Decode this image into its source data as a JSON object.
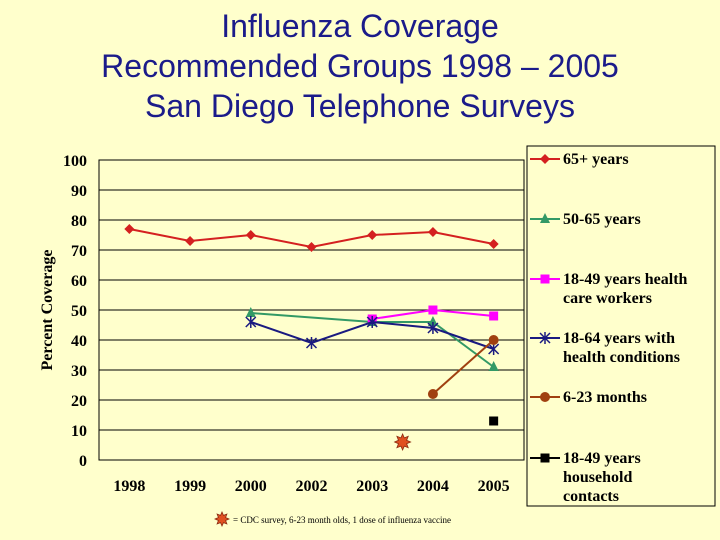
{
  "title_lines": [
    "Influenza Coverage",
    "Recommended Groups 1998 – 2005",
    "San Diego Telephone Surveys"
  ],
  "footnote": "= CDC survey, 6-23 month olds, 1 dose of influenza vaccine",
  "chart_data": {
    "type": "line",
    "categories": [
      "1998",
      "1999",
      "2000",
      "2002",
      "2003",
      "2004",
      "2005"
    ],
    "ylabel": "Percent Coverage",
    "xlabel": "",
    "ylim": [
      0,
      100
    ],
    "yticks": [
      "0",
      "10",
      "20",
      "30",
      "40",
      "50",
      "60",
      "70",
      "80",
      "90",
      "100"
    ],
    "grid": true,
    "legend_position": "right",
    "series": [
      {
        "name": "65+ years",
        "color": "#d42020",
        "marker": "diamond",
        "values": [
          77,
          73,
          75,
          71,
          75,
          76,
          72
        ]
      },
      {
        "name": "50-65 years",
        "color": "#339966",
        "marker": "triangle",
        "values": [
          null,
          null,
          49,
          null,
          46,
          46,
          31
        ]
      },
      {
        "name": "18-49 years health care workers",
        "color": "#ff00ff",
        "marker": "square",
        "values": [
          null,
          null,
          null,
          null,
          47,
          50,
          48
        ]
      },
      {
        "name": "18-64 years with health conditions",
        "color": "#1a1a80",
        "marker": "asterisk",
        "values": [
          null,
          null,
          46,
          39,
          46,
          44,
          37
        ]
      },
      {
        "name": "6-23 months",
        "color": "#a04010",
        "marker": "circle",
        "values": [
          null,
          null,
          null,
          null,
          null,
          22,
          40
        ]
      },
      {
        "name": "18-49 years household contacts",
        "color": "#000000",
        "marker": "square",
        "values": [
          null,
          null,
          null,
          null,
          null,
          null,
          13
        ]
      }
    ],
    "legend_lines": [
      [
        "65+ years"
      ],
      [
        "50-65 years"
      ],
      [
        "18-49 years health",
        "care workers"
      ],
      [
        "18-64 years with",
        "health conditions"
      ],
      [
        "6-23 months"
      ],
      [
        "18-49 years",
        "household",
        "contacts"
      ]
    ],
    "cdc_point": {
      "x_between": [
        "2003",
        "2004"
      ],
      "value": 6,
      "color": "#e05020"
    }
  }
}
